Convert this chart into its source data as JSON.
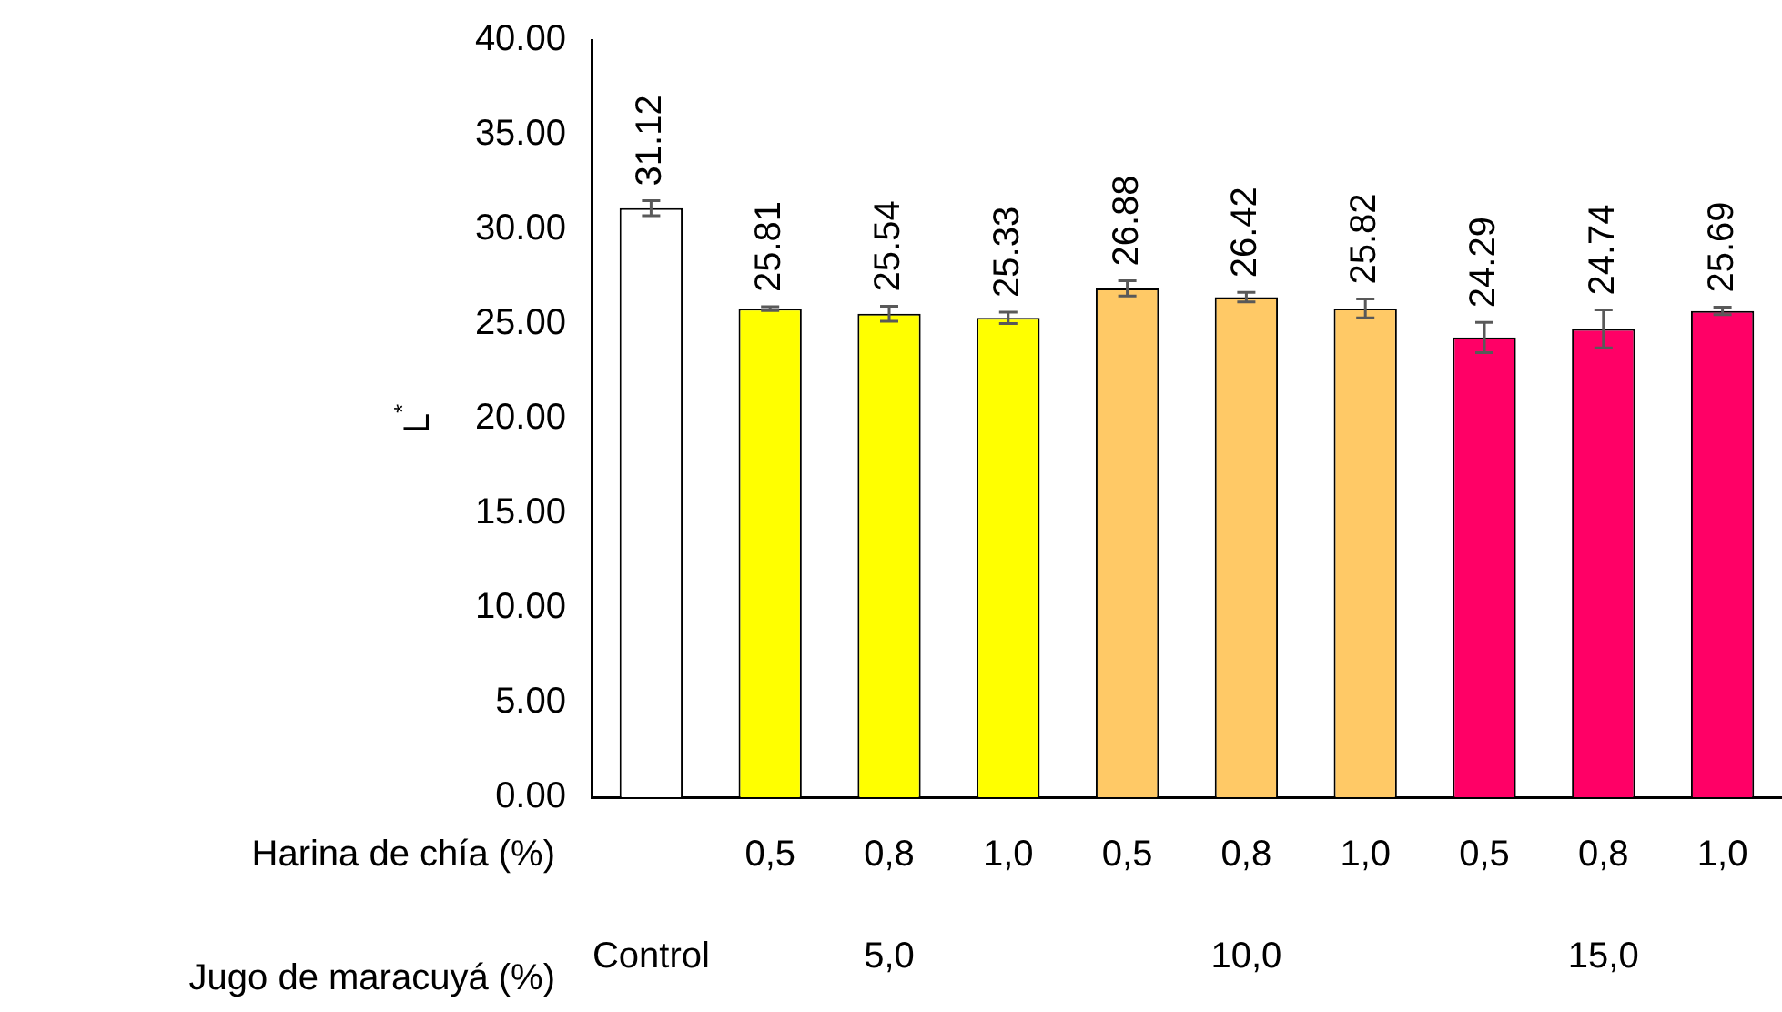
{
  "chart_data": {
    "type": "bar",
    "ylabel": "L$^{*}$",
    "categories": [
      null,
      "0,5",
      "0,8",
      "1,0",
      "0,5",
      "0,8",
      "1,0",
      "0,5",
      "0,8",
      "1,0"
    ],
    "values": [
      31.12,
      25.81,
      25.54,
      25.33,
      26.88,
      26.42,
      25.82,
      24.29,
      24.74,
      25.69
    ],
    "errors": [
      0.4,
      0.1,
      0.4,
      0.3,
      0.4,
      0.25,
      0.5,
      0.8,
      1.0,
      0.2
    ],
    "colors": [
      "#ffffff",
      "#ffff00",
      "#ffff00",
      "#ffff00",
      "#ffc966",
      "#ffc966",
      "#ffc966",
      "#ff0066",
      "#ff0066",
      "#ff0066"
    ],
    "ylim": [
      0,
      40
    ],
    "yticks": [
      {
        "value": 0,
        "label": "0.00"
      },
      {
        "value": 5,
        "label": "5.00"
      },
      {
        "value": 10,
        "label": "10.00"
      },
      {
        "value": 15,
        "label": "15.00"
      },
      {
        "value": 20,
        "label": "20.00"
      },
      {
        "value": 25,
        "label": "25.00"
      },
      {
        "value": 30,
        "label": "30.00"
      },
      {
        "value": 35,
        "label": "35.00"
      },
      {
        "value": 40,
        "label": "40.00"
      }
    ],
    "annotations": [
      "Harina de chía (%)",
      "Jugo de maracuyá (%)",
      "Control",
      "5,0",
      "10,0",
      "15,0"
    ],
    "data_labels": true,
    "grid": false,
    "legend": false
  }
}
